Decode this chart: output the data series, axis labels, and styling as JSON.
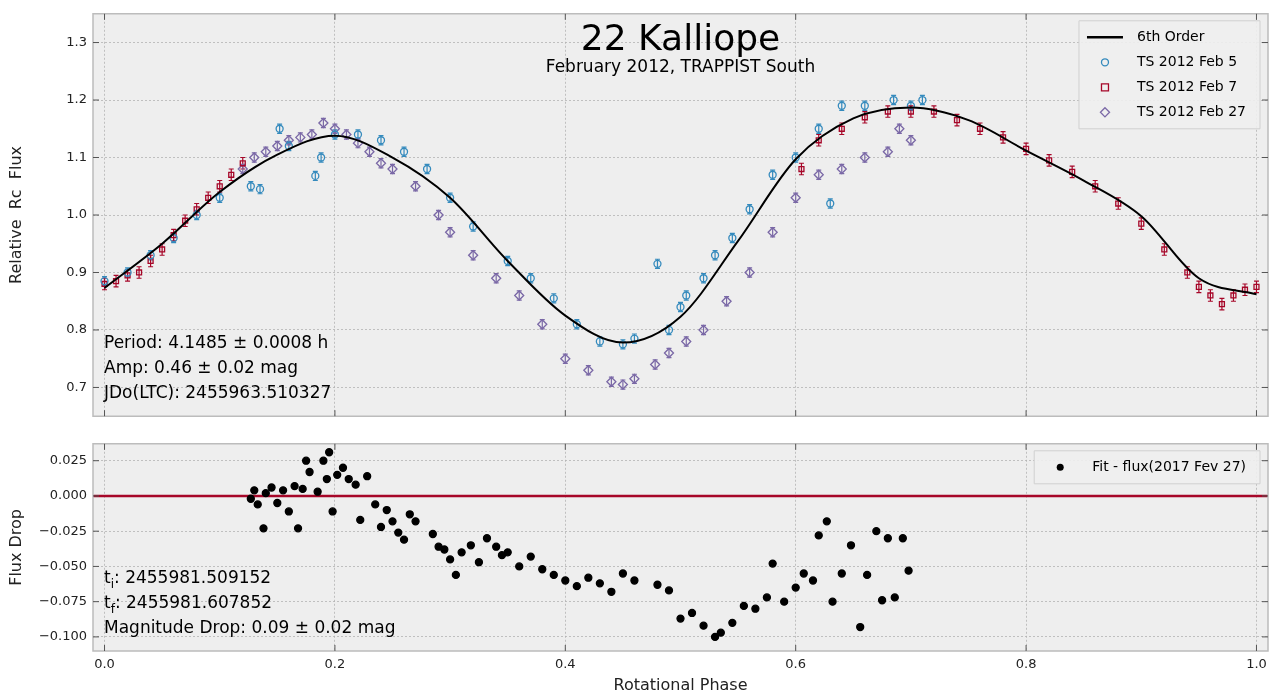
{
  "chart_data": [
    {
      "type": "scatter",
      "title": "22 Kalliope",
      "subtitle": "February 2012, TRAPPIST South",
      "ylabel": "Relative  Rc  Flux",
      "annotations": [
        "Period: 4.1485 ± 0.0008 h",
        "Amp: 0.46 ± 0.02 mag",
        "JDo(LTC): 2455963.510327"
      ],
      "xlim": [
        -0.01,
        1.01
      ],
      "ylim": [
        0.65,
        1.35
      ],
      "xticks": [
        0,
        0.2,
        0.4,
        0.6,
        0.8,
        1
      ],
      "yticks": [
        0.7,
        0.8,
        0.9,
        {
          "value": 1,
          "label": "1.0"
        },
        1.1,
        1.2,
        1.3
      ],
      "tick_labels": "y",
      "grid": true,
      "legend": "top right",
      "series": [
        {
          "name": "6th Order",
          "type": "line",
          "color": "#000000",
          "marker": "none",
          "x": [
            0,
            0.05,
            0.1,
            0.15,
            0.2,
            0.25,
            0.3,
            0.35,
            0.4,
            0.45,
            0.5,
            0.55,
            0.6,
            0.65,
            0.7,
            0.75,
            0.8,
            0.85,
            0.9,
            0.95,
            1.0
          ],
          "values": [
            0.873,
            0.95,
            1.04,
            1.105,
            1.138,
            1.1,
            1.03,
            0.92,
            0.825,
            0.778,
            0.823,
            0.955,
            1.097,
            1.168,
            1.187,
            1.165,
            1.112,
            1.06,
            0.998,
            0.89,
            0.862
          ]
        },
        {
          "name": "TS 2012 Feb 5",
          "type": "scatter",
          "color": "#348abd",
          "marker": "circle",
          "x": [
            0.0,
            0.02,
            0.04,
            0.06,
            0.08,
            0.1,
            0.127,
            0.135,
            0.152,
            0.16,
            0.183,
            0.188,
            0.2,
            0.22,
            0.24,
            0.26,
            0.28,
            0.3,
            0.32,
            0.35,
            0.37,
            0.39,
            0.41,
            0.43,
            0.45,
            0.46,
            0.48,
            0.49,
            0.5,
            0.505,
            0.52,
            0.53,
            0.545,
            0.56,
            0.58,
            0.6,
            0.62,
            0.63,
            0.64,
            0.66,
            0.685,
            0.7,
            0.71
          ],
          "values": [
            0.885,
            0.9,
            0.93,
            0.96,
            1.0,
            1.03,
            1.05,
            1.045,
            1.15,
            1.12,
            1.068,
            1.1,
            1.14,
            1.14,
            1.13,
            1.11,
            1.08,
            1.03,
            0.98,
            0.92,
            0.89,
            0.855,
            0.81,
            0.78,
            0.775,
            0.785,
            0.915,
            0.8,
            0.84,
            0.86,
            0.89,
            0.93,
            0.96,
            1.01,
            1.07,
            1.1,
            1.15,
            1.02,
            1.19,
            1.19,
            1.2,
            1.19,
            1.2
          ],
          "errors": [
            0.008,
            0.008,
            0.008,
            0.008,
            0.008,
            0.008,
            0.008,
            0.008,
            0.008,
            0.008,
            0.008,
            0.008,
            0.008,
            0.008,
            0.008,
            0.008,
            0.008,
            0.008,
            0.008,
            0.008,
            0.008,
            0.008,
            0.008,
            0.008,
            0.008,
            0.008,
            0.008,
            0.008,
            0.008,
            0.008,
            0.008,
            0.008,
            0.008,
            0.008,
            0.008,
            0.008,
            0.008,
            0.008,
            0.008,
            0.008,
            0.008,
            0.008,
            0.008
          ]
        },
        {
          "name": "TS 2012 Feb 7",
          "type": "scatter",
          "color": "#a60628",
          "marker": "square",
          "x": [
            0.0,
            0.01,
            0.02,
            0.03,
            0.04,
            0.05,
            0.06,
            0.07,
            0.08,
            0.09,
            0.1,
            0.11,
            0.12,
            0.605,
            0.62,
            0.64,
            0.66,
            0.68,
            0.7,
            0.72,
            0.74,
            0.76,
            0.78,
            0.8,
            0.82,
            0.84,
            0.86,
            0.88,
            0.9,
            0.92,
            0.94,
            0.95,
            0.96,
            0.97,
            0.98,
            0.99,
            1.0
          ],
          "values": [
            0.88,
            0.885,
            0.895,
            0.9,
            0.92,
            0.94,
            0.965,
            0.99,
            1.01,
            1.03,
            1.05,
            1.07,
            1.09,
            1.08,
            1.13,
            1.15,
            1.17,
            1.18,
            1.18,
            1.18,
            1.165,
            1.15,
            1.135,
            1.115,
            1.095,
            1.075,
            1.05,
            1.02,
            0.985,
            0.94,
            0.9,
            0.875,
            0.86,
            0.845,
            0.86,
            0.87,
            0.875
          ],
          "errors": [
            0.01,
            0.01,
            0.01,
            0.01,
            0.01,
            0.01,
            0.01,
            0.01,
            0.01,
            0.01,
            0.01,
            0.01,
            0.01,
            0.01,
            0.01,
            0.01,
            0.01,
            0.01,
            0.01,
            0.01,
            0.01,
            0.01,
            0.01,
            0.01,
            0.01,
            0.01,
            0.01,
            0.01,
            0.01,
            0.01,
            0.01,
            0.01,
            0.01,
            0.01,
            0.01,
            0.01,
            0.01
          ]
        },
        {
          "name": "TS 2012 Feb 27",
          "type": "scatter",
          "color": "#7a68a6",
          "marker": "diamond",
          "x": [
            0.12,
            0.13,
            0.14,
            0.15,
            0.16,
            0.17,
            0.18,
            0.19,
            0.2,
            0.21,
            0.22,
            0.23,
            0.24,
            0.25,
            0.27,
            0.29,
            0.3,
            0.32,
            0.34,
            0.36,
            0.38,
            0.4,
            0.42,
            0.44,
            0.45,
            0.46,
            0.478,
            0.49,
            0.505,
            0.52,
            0.54,
            0.56,
            0.58,
            0.6,
            0.62,
            0.64,
            0.66,
            0.68,
            0.69,
            0.7
          ],
          "values": [
            1.08,
            1.1,
            1.11,
            1.12,
            1.13,
            1.135,
            1.14,
            1.16,
            1.15,
            1.14,
            1.125,
            1.11,
            1.09,
            1.08,
            1.05,
            1.0,
            0.97,
            0.93,
            0.89,
            0.86,
            0.81,
            0.75,
            0.73,
            0.71,
            0.705,
            0.715,
            0.74,
            0.76,
            0.78,
            0.8,
            0.85,
            0.9,
            0.97,
            1.03,
            1.07,
            1.08,
            1.1,
            1.11,
            1.15,
            1.13
          ],
          "errors": [
            0.008,
            0.008,
            0.008,
            0.008,
            0.008,
            0.008,
            0.008,
            0.008,
            0.008,
            0.008,
            0.008,
            0.008,
            0.008,
            0.008,
            0.008,
            0.008,
            0.008,
            0.008,
            0.008,
            0.008,
            0.008,
            0.008,
            0.008,
            0.008,
            0.008,
            0.008,
            0.008,
            0.008,
            0.008,
            0.008,
            0.008,
            0.008,
            0.008,
            0.008,
            0.008,
            0.008,
            0.008,
            0.008,
            0.008,
            0.008
          ]
        }
      ]
    },
    {
      "type": "scatter",
      "xlabel": "Rotational Phase",
      "ylabel": "Flux Drop",
      "annotations": [
        "t$_{i}$: 2455981.509152",
        "t$_{f}$: 2455981.607852",
        "Magnitude Drop: 0.09 ± 0.02 mag"
      ],
      "xlim": [
        -0.01,
        1.01
      ],
      "ylim": [
        -0.11,
        0.037
      ],
      "xticks": [
        {
          "value": 0,
          "label": "0.0"
        },
        0.2,
        0.4,
        0.6,
        0.8,
        {
          "value": 1,
          "label": "1.0"
        }
      ],
      "yticks": [
        {
          "value": -0.1,
          "label": "−0.100"
        },
        {
          "value": -0.075,
          "label": "−0.075"
        },
        {
          "value": -0.05,
          "label": "−0.050"
        },
        {
          "value": -0.025,
          "label": "−0.025"
        },
        {
          "value": 0,
          "label": "0.000"
        },
        0.025
      ],
      "grid": true,
      "legend": "top right",
      "ref_lines": [
        {
          "axis": "y",
          "value": 0,
          "color": "#a60628"
        }
      ],
      "series": [
        {
          "name": "Fit - flux(2017 Fev 27)",
          "type": "scatter",
          "color": "#000000",
          "marker": "circle",
          "x": [
            0.127,
            0.13,
            0.133,
            0.138,
            0.14,
            0.145,
            0.15,
            0.155,
            0.16,
            0.165,
            0.168,
            0.172,
            0.175,
            0.178,
            0.185,
            0.19,
            0.193,
            0.195,
            0.198,
            0.202,
            0.207,
            0.212,
            0.218,
            0.222,
            0.228,
            0.235,
            0.24,
            0.245,
            0.25,
            0.255,
            0.26,
            0.265,
            0.27,
            0.285,
            0.29,
            0.295,
            0.3,
            0.305,
            0.31,
            0.318,
            0.325,
            0.332,
            0.34,
            0.345,
            0.35,
            0.36,
            0.37,
            0.38,
            0.39,
            0.4,
            0.41,
            0.42,
            0.43,
            0.44,
            0.45,
            0.46,
            0.48,
            0.49,
            0.5,
            0.51,
            0.52,
            0.53,
            0.535,
            0.545,
            0.555,
            0.565,
            0.575,
            0.58,
            0.59,
            0.6,
            0.607,
            0.615,
            0.62,
            0.627,
            0.632,
            0.64,
            0.648,
            0.656,
            0.662,
            0.67,
            0.675,
            0.68,
            0.686,
            0.693,
            0.698
          ],
          "values": [
            -0.002,
            0.004,
            -0.006,
            -0.023,
            0.002,
            0.006,
            -0.005,
            0.004,
            -0.011,
            0.007,
            -0.023,
            0.005,
            0.025,
            0.017,
            0.003,
            0.025,
            0.012,
            0.031,
            -0.011,
            0.015,
            0.02,
            0.012,
            0.008,
            -0.017,
            0.014,
            -0.006,
            -0.022,
            -0.01,
            -0.018,
            -0.026,
            -0.031,
            -0.013,
            -0.018,
            -0.027,
            -0.036,
            -0.038,
            -0.045,
            -0.056,
            -0.04,
            -0.035,
            -0.047,
            -0.03,
            -0.036,
            -0.042,
            -0.04,
            -0.05,
            -0.043,
            -0.052,
            -0.056,
            -0.06,
            -0.064,
            -0.058,
            -0.062,
            -0.068,
            -0.055,
            -0.06,
            -0.063,
            -0.067,
            -0.087,
            -0.083,
            -0.092,
            -0.1,
            -0.097,
            -0.09,
            -0.078,
            -0.08,
            -0.072,
            -0.048,
            -0.075,
            -0.065,
            -0.055,
            -0.06,
            -0.028,
            -0.018,
            -0.075,
            -0.055,
            -0.035,
            -0.093,
            -0.056,
            -0.025,
            -0.074,
            -0.03,
            -0.072,
            -0.03,
            -0.053
          ]
        }
      ]
    }
  ]
}
